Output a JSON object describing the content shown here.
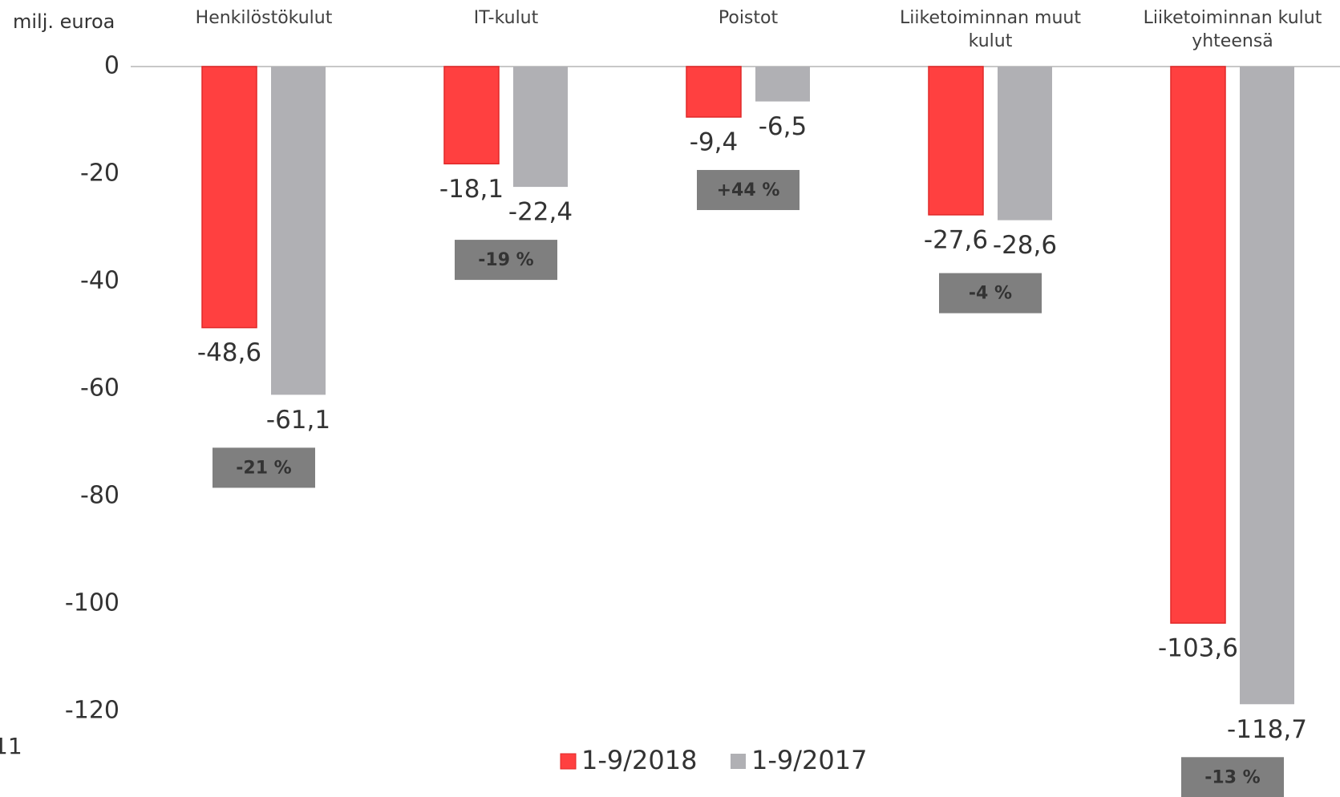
{
  "chart_data": {
    "type": "bar",
    "y_axis_label": "milj. euroa",
    "page_number": "11",
    "categories": [
      "Henkilöstökulut",
      "IT-kulut",
      "Poistot",
      "Liiketoiminnan muut kulut",
      "Liiketoiminnan kulut yhteensä"
    ],
    "series": [
      {
        "name": "1-9/2018",
        "color": "#ff4040",
        "values": [
          -48.6,
          -18.1,
          -9.4,
          -27.6,
          -103.6
        ],
        "value_labels": [
          "-48,6",
          "-18,1",
          "-9,4",
          "-27,6",
          "-103,6"
        ]
      },
      {
        "name": "1-9/2017",
        "color": "#b0b0b4",
        "values": [
          -61.1,
          -22.4,
          -6.5,
          -28.6,
          -118.7
        ],
        "value_labels": [
          "-61,1",
          "-22,4",
          "-6,5",
          "-28,6",
          "-118,7"
        ]
      }
    ],
    "change_labels": [
      "-21 %",
      "-19 %",
      "+44 %",
      "-4 %",
      "-13 %"
    ],
    "ylim": [
      -120,
      0
    ],
    "yticks": [
      0,
      -20,
      -40,
      -60,
      -80,
      -100,
      -120
    ]
  }
}
